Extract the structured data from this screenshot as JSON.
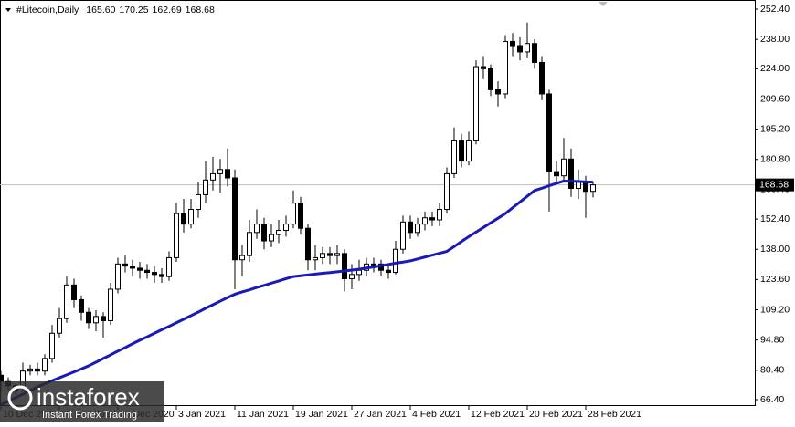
{
  "chart_data": {
    "type": "candlestick",
    "title": "#Litecoin,Daily",
    "header_values": [
      {
        "value": 165.6,
        "label": "165.60"
      },
      {
        "value": 170.25,
        "label": "170.25"
      },
      {
        "value": 162.69,
        "label": "162.69"
      },
      {
        "value": 168.68,
        "label": "168.68"
      }
    ],
    "categories": [
      "10 Dec 2020",
      null,
      null,
      null,
      null,
      null,
      null,
      null,
      "18 Dec 2020",
      null,
      null,
      null,
      null,
      null,
      null,
      null,
      "26 Dec 2020",
      null,
      null,
      null,
      null,
      null,
      null,
      null,
      "3 Jan 2021",
      null,
      null,
      null,
      null,
      null,
      null,
      null,
      "11 Jan 2021",
      null,
      null,
      null,
      null,
      null,
      null,
      null,
      "19 Jan 2021",
      null,
      null,
      null,
      null,
      null,
      null,
      null,
      "27 Jan 2021",
      null,
      null,
      null,
      null,
      null,
      null,
      null,
      "4 Feb 2021",
      null,
      null,
      null,
      null,
      null,
      null,
      null,
      "12 Feb 2021",
      null,
      null,
      null,
      null,
      null,
      null,
      null,
      "20 Feb 2021",
      null,
      null,
      null,
      null,
      null,
      null,
      null,
      "28 Feb 2021",
      null
    ],
    "open": [
      78,
      75,
      73,
      72,
      80,
      81,
      80,
      86,
      98,
      105,
      121,
      114,
      108,
      103,
      106,
      104,
      119,
      131,
      130,
      129,
      128,
      127,
      126,
      125,
      134,
      155,
      150,
      157,
      164,
      171,
      174,
      176,
      172,
      133,
      135,
      146,
      150,
      142,
      145,
      147,
      150,
      160,
      148,
      133,
      134,
      136,
      135,
      136,
      124,
      126,
      128,
      131,
      131,
      128,
      127,
      138,
      151,
      146,
      150,
      153,
      152,
      157,
      174,
      190,
      180,
      190,
      225,
      224,
      214,
      212,
      237,
      235,
      232,
      236,
      227,
      212,
      175,
      173,
      181,
      167,
      170,
      165.6
    ],
    "high": [
      80,
      77,
      74,
      84,
      83,
      84,
      88,
      102,
      110,
      125,
      124,
      116,
      110,
      109,
      108,
      122,
      134,
      135,
      133,
      132,
      131,
      130,
      129,
      137,
      160,
      162,
      162,
      170,
      180,
      182,
      181,
      186,
      176,
      140,
      152,
      157,
      153,
      150,
      152,
      154,
      166,
      163,
      150,
      140,
      139,
      139,
      140,
      138,
      131,
      133,
      134,
      134,
      133,
      131,
      142,
      154,
      154,
      153,
      156,
      156,
      160,
      177,
      196,
      193,
      194,
      228,
      230,
      226,
      218,
      240,
      241,
      239,
      246,
      238,
      230,
      214,
      180,
      191,
      186,
      176,
      173,
      170.25
    ],
    "low": [
      70,
      71,
      69,
      71,
      78,
      78,
      78,
      84,
      96,
      103,
      110,
      104,
      100,
      99,
      96,
      102,
      117,
      127,
      125,
      124,
      124,
      122,
      122,
      123,
      132,
      146,
      148,
      153,
      160,
      166,
      165,
      168,
      119,
      125,
      132,
      143,
      138,
      139,
      141,
      144,
      148,
      145,
      128,
      128,
      131,
      131,
      131,
      118,
      119,
      123,
      125,
      127,
      125,
      124,
      126,
      136,
      143,
      144,
      147,
      149,
      149,
      155,
      172,
      177,
      178,
      188,
      219,
      211,
      206,
      210,
      230,
      228,
      229,
      224,
      209,
      156,
      170,
      170,
      163,
      162,
      153,
      162.69
    ],
    "close": [
      75,
      73,
      71,
      80,
      81,
      80,
      86,
      98,
      105,
      121,
      114,
      108,
      103,
      106,
      104,
      119,
      131,
      130,
      129,
      128,
      127,
      126,
      125,
      134,
      155,
      150,
      157,
      164,
      171,
      174,
      176,
      172,
      133,
      135,
      146,
      150,
      142,
      145,
      147,
      150,
      160,
      148,
      133,
      134,
      136,
      135,
      136,
      124,
      126,
      128,
      131,
      131,
      128,
      127,
      138,
      151,
      146,
      150,
      153,
      152,
      157,
      174,
      190,
      180,
      190,
      225,
      224,
      214,
      212,
      237,
      235,
      232,
      236,
      227,
      212,
      175,
      173,
      181,
      167,
      170,
      165.6,
      168.68
    ],
    "up_color": "#ffffff",
    "down_color": "#000000",
    "ma": {
      "color": "#1a1ab8",
      "values": [
        64,
        65.7,
        67.3,
        69,
        70.7,
        72.3,
        74,
        75.4,
        76.8,
        78.2,
        79.6,
        81,
        82.5,
        84.2,
        86,
        87.7,
        89.5,
        91.2,
        93,
        94.7,
        96.3,
        98,
        99.7,
        101.3,
        103,
        104.7,
        106.4,
        108.1,
        109.9,
        111.6,
        113.3,
        115,
        116.6,
        117.7,
        118.7,
        119.8,
        120.8,
        121.9,
        122.9,
        124,
        125,
        125.4,
        125.8,
        126.2,
        126.6,
        126.9,
        127.3,
        127.7,
        128.1,
        128.5,
        129.1,
        129.6,
        130.2,
        130.8,
        131.4,
        131.9,
        132.5,
        133.4,
        134.3,
        135.2,
        136.1,
        137,
        139.3,
        141.7,
        144,
        146.2,
        148.4,
        150.6,
        152.8,
        155,
        157.8,
        160.5,
        163.3,
        166,
        167.1,
        168.3,
        169.4,
        170.5,
        170.4,
        170.3,
        170.1,
        170
      ]
    },
    "last_price": {
      "value": 168.68,
      "label": "168.68"
    },
    "ylim": [
      63.35,
      255.88
    ],
    "yticks": [
      {
        "value": 252.4,
        "label": "252.40"
      },
      {
        "value": 238,
        "label": "238.00"
      },
      {
        "value": 224,
        "label": "224.00"
      },
      {
        "value": 209.6,
        "label": "209.60"
      },
      {
        "value": 195.2,
        "label": "195.20"
      },
      {
        "value": 180.8,
        "label": "180.80"
      },
      {
        "value": 166.4,
        "label": "166.40"
      },
      {
        "value": 152.4,
        "label": "152.40"
      },
      {
        "value": 138,
        "label": "138.00"
      },
      {
        "value": 123.6,
        "label": "123.60"
      },
      {
        "value": 109.2,
        "label": "109.20"
      },
      {
        "value": 94.8,
        "label": "94.80"
      },
      {
        "value": 80.4,
        "label": "80.40"
      },
      {
        "value": 66.4,
        "label": "66.40"
      }
    ],
    "watermark": {
      "brand": "instaforex",
      "slogan": "Instant Forex Trading"
    }
  }
}
